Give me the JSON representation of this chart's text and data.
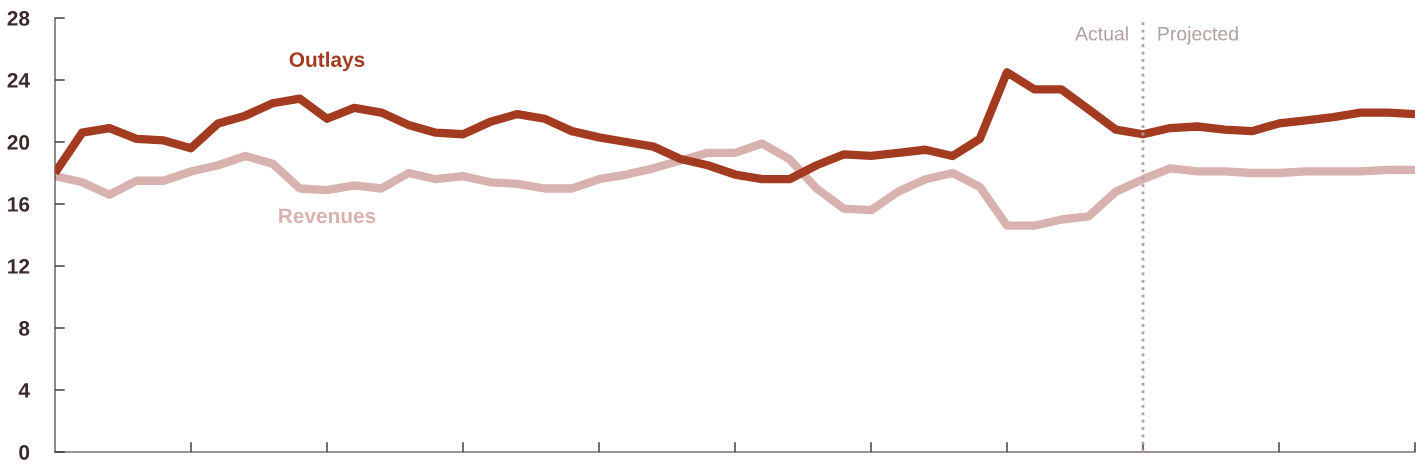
{
  "chart_data": {
    "type": "line",
    "categories": [
      null,
      null,
      null,
      null,
      null,
      null,
      null,
      null,
      null,
      null,
      null,
      null,
      null,
      null,
      null,
      null,
      null,
      null,
      null,
      null,
      null,
      null,
      null,
      null,
      null,
      null,
      null,
      null,
      null,
      null,
      null,
      null,
      null,
      null,
      null,
      null,
      null,
      null,
      null,
      null,
      null,
      null,
      null,
      null,
      null,
      null,
      null,
      null,
      null,
      null,
      null
    ],
    "series": [
      {
        "name": "Outlays",
        "color": "#a33b20",
        "values": [
          18.0,
          20.6,
          20.9,
          20.2,
          20.1,
          19.6,
          21.2,
          21.7,
          22.5,
          22.8,
          21.5,
          22.2,
          21.9,
          21.1,
          20.6,
          20.5,
          21.3,
          21.8,
          21.5,
          20.7,
          20.3,
          20.0,
          19.7,
          18.9,
          18.5,
          17.9,
          17.6,
          17.6,
          18.5,
          19.2,
          19.1,
          19.3,
          19.5,
          19.1,
          20.2,
          24.5,
          23.4,
          23.4,
          22.1,
          20.8,
          20.5,
          20.9,
          21.0,
          20.8,
          20.7,
          21.2,
          21.4,
          21.6,
          21.9,
          21.9,
          21.8
        ]
      },
      {
        "name": "Revenues",
        "color": "#d8b2ae",
        "values": [
          17.8,
          17.4,
          16.6,
          17.5,
          17.5,
          18.1,
          18.5,
          19.1,
          18.6,
          17.0,
          16.9,
          17.2,
          17.0,
          18.0,
          17.6,
          17.8,
          17.4,
          17.3,
          17.0,
          17.0,
          17.6,
          17.9,
          18.3,
          18.8,
          19.3,
          19.3,
          19.9,
          18.9,
          17.0,
          15.7,
          15.6,
          16.8,
          17.6,
          18.0,
          17.1,
          14.6,
          14.6,
          15.0,
          15.2,
          16.8,
          17.6,
          18.3,
          18.1,
          18.1,
          18.0,
          18.0,
          18.1,
          18.1,
          18.1,
          18.2,
          18.2
        ]
      }
    ],
    "ylim": [
      0,
      28
    ],
    "yticks": [
      0,
      4,
      8,
      12,
      16,
      20,
      24,
      28
    ],
    "tick_labels": "y",
    "annotations": [
      "Actual",
      "Projected"
    ],
    "grid": false,
    "legend": false,
    "line_style": "solid",
    "marker": "none"
  }
}
